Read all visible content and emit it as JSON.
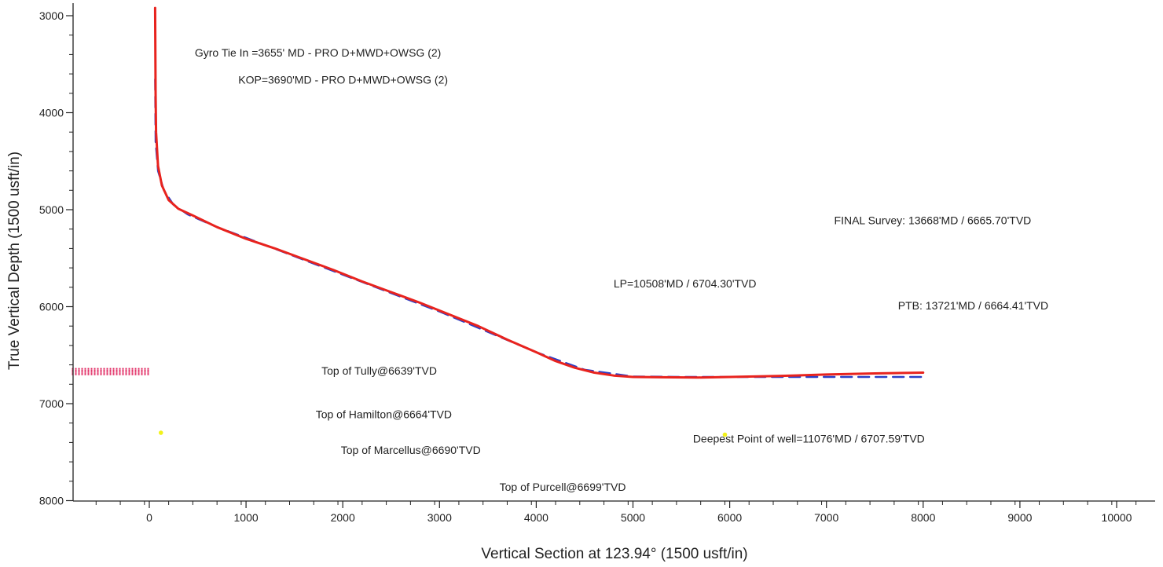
{
  "chart_data": {
    "type": "line",
    "title": "",
    "xlabel": "Vertical Section at 123.94° (1500 usft/in)",
    "ylabel": "True Vertical Depth (1500 usft/in)",
    "xlim": [
      -800,
      10500
    ],
    "ylim": [
      3000,
      8000
    ],
    "y_inverted": true,
    "x_ticks": [
      0,
      1000,
      2000,
      3000,
      4000,
      5000,
      6000,
      7000,
      8000,
      9000,
      10000
    ],
    "y_ticks": [
      3000,
      4000,
      5000,
      6000,
      7000,
      8000
    ],
    "grid": false,
    "colors": {
      "actual": "#e8231e",
      "plan": "#2b3fc7",
      "formation_band": "#e0245e",
      "marker": "#f2f21a"
    },
    "series": [
      {
        "line": "actual",
        "x": [
          60,
          62,
          63,
          65,
          70,
          90,
          130,
          200,
          300,
          450,
          700,
          1000,
          1300,
          1600,
          1900,
          2200,
          2500,
          2800,
          3100,
          3400,
          3700,
          4000,
          4200,
          4400,
          4600,
          4800,
          5000,
          5300,
          5700,
          6000,
          6500,
          7000,
          7500,
          8000
        ],
        "y": [
          2920,
          3200,
          3500,
          3800,
          4200,
          4550,
          4750,
          4900,
          4990,
          5060,
          5180,
          5300,
          5400,
          5510,
          5620,
          5740,
          5850,
          5960,
          6080,
          6200,
          6340,
          6470,
          6560,
          6630,
          6680,
          6710,
          6725,
          6728,
          6730,
          6725,
          6715,
          6700,
          6688,
          6680
        ]
      },
      {
        "line": "plan",
        "x": [
          60,
          65,
          90,
          150,
          250,
          400,
          700,
          1000,
          1500,
          2000,
          2500,
          3000,
          3500,
          4000,
          4500,
          5000,
          5500,
          6000,
          7000,
          8000
        ],
        "y": [
          3655,
          4300,
          4600,
          4800,
          4950,
          5050,
          5180,
          5290,
          5480,
          5670,
          5860,
          6050,
          6260,
          6470,
          6650,
          6720,
          6725,
          6725,
          6725,
          6725
        ]
      }
    ],
    "formation_band": {
      "x": [
        -800,
        0
      ],
      "y": [
        6639,
        6700
      ]
    },
    "markers": [
      {
        "x": 120,
        "y": 7300
      },
      {
        "x": 5950,
        "y": 7320
      }
    ],
    "annotations": [
      {
        "text": "Gyro Tie In =3655' MD - PRO D+MWD+OWSG (2)",
        "x": 470,
        "y": 3420
      },
      {
        "text": "KOP=3690'MD - PRO D+MWD+OWSG (2)",
        "x": 920,
        "y": 3700
      },
      {
        "text": "FINAL Survey: 13668'MD / 6665.70'TVD",
        "x": 7080,
        "y": 5150
      },
      {
        "text": "LP=10508'MD / 6704.30'TVD",
        "x": 4800,
        "y": 5800
      },
      {
        "text": "PTB: 13721'MD / 6664.41'TVD",
        "x": 7740,
        "y": 6030
      },
      {
        "text": "Top of Tully@6639'TVD",
        "x": 1780,
        "y": 6700
      },
      {
        "text": "Top of Hamilton@6664'TVD",
        "x": 1720,
        "y": 7150
      },
      {
        "text": "Top of Marcellus@6690'TVD",
        "x": 1980,
        "y": 7520
      },
      {
        "text": "Top of Purcell@6699'TVD",
        "x": 3620,
        "y": 7900
      },
      {
        "text": "Deepest Point of well=11076'MD / 6707.59'TVD",
        "x": 5620,
        "y": 7400
      }
    ]
  }
}
